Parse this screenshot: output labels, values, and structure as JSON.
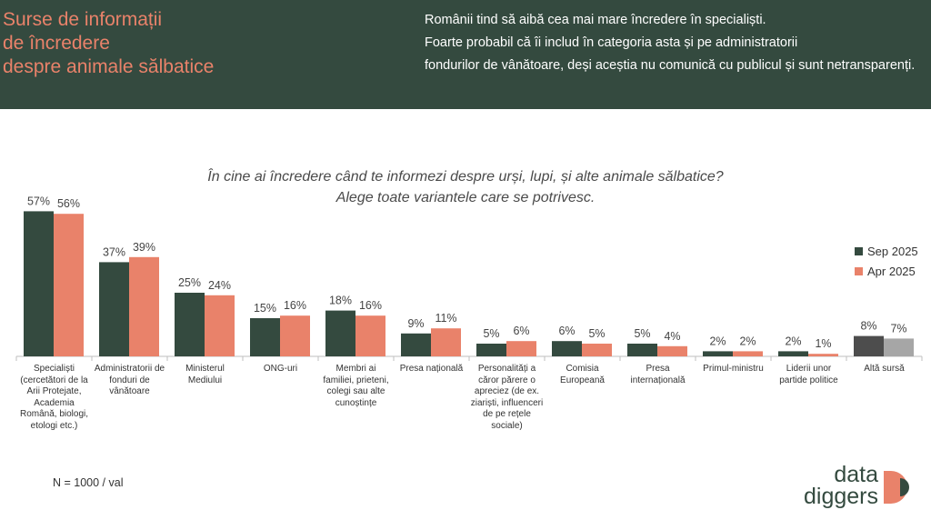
{
  "header": {
    "title_lines": [
      "Surse de informații",
      "de încredere",
      "despre animale sălbatice"
    ],
    "description": [
      "Românii tind să aibă cea mai mare încredere în specialiști.",
      "Foarte probabil că îi includ în categoria asta și pe administratorii",
      "fondurilor de vânătoare, deși aceștia nu comunică cu publicul și sunt netransparenți."
    ]
  },
  "colors": {
    "sep": "#344a3f",
    "apr": "#e9826a",
    "other_sep": "#4d4d4d",
    "other_apr": "#a6a6a6",
    "header_bg": "#344a3f"
  },
  "chart_data": {
    "type": "bar",
    "title": "În cine ai încredere când te informezi despre urși, lupi, și alte animale sălbatice?",
    "subtitle": "Alege toate variantele care se potrivesc.",
    "categories": [
      "Specialiști (cercetători de la Arii Protejate, Academia Română, biologi, etologi etc.)",
      "Administratorii de fonduri de vânătoare",
      "Ministerul Mediului",
      "ONG-uri",
      "Membri ai familiei, prieteni, colegi sau alte cunoștințe",
      "Presa națională",
      "Personalități a căror părere o apreciez (de ex. ziariști, influenceri de pe rețele sociale)",
      "Comisia Europeană",
      "Presa internațională",
      "Primul-ministru",
      "Liderii unor partide politice",
      "Altă sursă"
    ],
    "series": [
      {
        "name": "Sep 2025",
        "values": [
          57,
          37,
          25,
          15,
          18,
          9,
          5,
          6,
          5,
          2,
          2,
          8
        ]
      },
      {
        "name": "Apr 2025",
        "values": [
          56,
          39,
          24,
          16,
          16,
          11,
          6,
          5,
          4,
          2,
          1,
          7
        ]
      }
    ],
    "value_suffix": "%",
    "ylim": [
      0,
      60
    ],
    "grid": false,
    "legend_position": "right"
  },
  "footnote": "N = 1000 / val",
  "logo": {
    "line1": "data",
    "line2": "diggers"
  }
}
